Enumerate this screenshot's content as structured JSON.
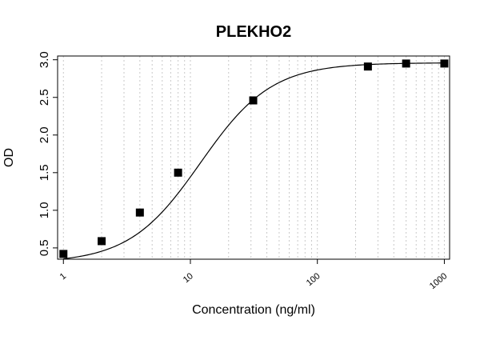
{
  "chart_data": {
    "type": "scatter",
    "title": "PLEKHO2",
    "xlabel": "Concentration (ng/ml)",
    "ylabel": "OD",
    "x_scale": "log",
    "xlim": [
      0.9,
      1100
    ],
    "ylim": [
      0.35,
      3.05
    ],
    "x_ticks": [
      1,
      10,
      100,
      1000
    ],
    "x_tick_labels": [
      "1",
      "10",
      "100",
      "1000"
    ],
    "y_ticks": [
      0.5,
      1.0,
      1.5,
      2.0,
      2.5,
      3.0
    ],
    "y_tick_labels": [
      "0.5",
      "1.0",
      "1.5",
      "2.0",
      "2.5",
      "3.0"
    ],
    "grid": true,
    "series": [
      {
        "x": [
          1,
          2,
          4,
          8,
          31.25,
          250,
          500,
          1000
        ],
        "y": [
          0.42,
          0.59,
          0.97,
          1.5,
          2.46,
          2.91,
          2.95,
          2.95
        ]
      }
    ],
    "fit": {
      "model": "4PL",
      "bottom": 0.3,
      "top": 2.96,
      "ec50": 12,
      "hill": 1.55
    }
  }
}
